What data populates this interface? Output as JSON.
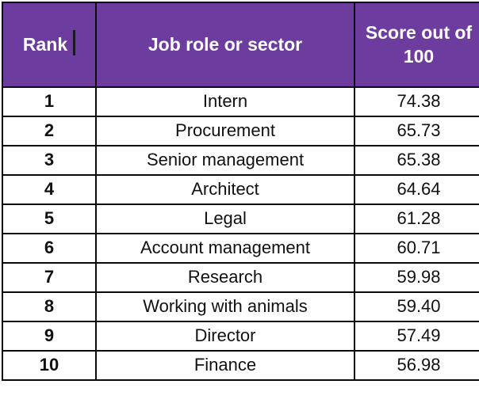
{
  "colors": {
    "header_bg": "#6c3c9f",
    "header_text": "#ffffff",
    "border": "#0a0a0a",
    "body_text": "#111111"
  },
  "icons": {
    "text_cursor": "text-cursor"
  },
  "chart_data": {
    "type": "table",
    "columns": [
      "Rank",
      "Job role or sector",
      "Score out of 100"
    ],
    "rows": [
      {
        "rank": "1",
        "role": "Intern",
        "score": "74.38"
      },
      {
        "rank": "2",
        "role": "Procurement",
        "score": "65.73"
      },
      {
        "rank": "3",
        "role": "Senior management",
        "score": "65.38"
      },
      {
        "rank": "4",
        "role": "Architect",
        "score": "64.64"
      },
      {
        "rank": "5",
        "role": "Legal",
        "score": "61.28"
      },
      {
        "rank": "6",
        "role": "Account management",
        "score": "60.71"
      },
      {
        "rank": "7",
        "role": "Research",
        "score": "59.98"
      },
      {
        "rank": "8",
        "role": "Working with animals",
        "score": "59.40"
      },
      {
        "rank": "9",
        "role": "Director",
        "score": "57.49"
      },
      {
        "rank": "10",
        "role": "Finance",
        "score": "56.98"
      }
    ]
  }
}
